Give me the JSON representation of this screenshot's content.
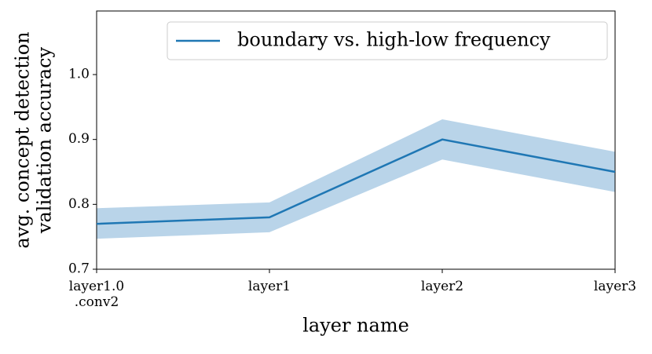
{
  "chart_data": {
    "type": "line",
    "categories": [
      "layer1.0\n.conv2",
      "layer1",
      "layer2",
      "layer3"
    ],
    "series": [
      {
        "name": "boundary vs. high-low frequency",
        "color": "#1f77b4",
        "values": [
          0.77,
          0.78,
          0.9,
          0.85
        ]
      }
    ],
    "band": {
      "color": "#b9d4e9",
      "lower": [
        0.747,
        0.757,
        0.869,
        0.819
      ],
      "upper": [
        0.794,
        0.803,
        0.931,
        0.881
      ]
    },
    "xlabel": "layer name",
    "ylabel": [
      "avg. concept detection",
      "validation accuracy"
    ],
    "ylim": [
      0.7,
      1.098
    ],
    "yticks": [
      0.7,
      0.8,
      0.9,
      {
        "value": 1.0,
        "label": "1.0"
      }
    ],
    "legend": "upper right"
  }
}
